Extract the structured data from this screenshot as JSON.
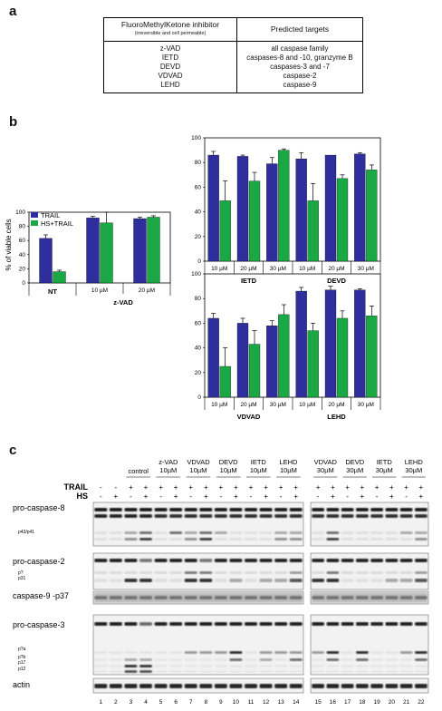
{
  "panel_a": {
    "letter": "a",
    "header_left_line1": "FluoroMethylKetone inhibitor",
    "header_left_line2": "(irreversible and cell permeable)",
    "header_right": "Predicted targets",
    "rows": [
      {
        "inhibitor": "z-VAD",
        "target": "all caspase family"
      },
      {
        "inhibitor": "IETD",
        "target": "caspases-8 and -10, granzyme B"
      },
      {
        "inhibitor": "DEVD",
        "target": "caspases-3 and -7"
      },
      {
        "inhibitor": "VDVAD",
        "target": "caspase-2"
      },
      {
        "inhibitor": "LEHD",
        "target": "caspase-9"
      }
    ]
  },
  "panel_b": {
    "letter": "b",
    "ylabel": "% of viable cells",
    "legend": [
      "TRAIL",
      "HS+TRAIL"
    ],
    "colors": {
      "trail": "#2e2f9c",
      "hs": "#19a844"
    }
  },
  "panel_c": {
    "letter": "c",
    "trail_label": "TRAIL",
    "hs_label": "HS",
    "group_labels_left": [
      "control",
      "z-VAD\n10µM",
      "VDVAD\n10µM",
      "DEVD\n10µM",
      "IETD\n10µM",
      "LEHD\n10µM"
    ],
    "group_labels_right": [
      "VDVAD\n30µM",
      "DEVD\n30µM",
      "IETD\n30µM",
      "LEHD\n30µM"
    ],
    "trail_signs_left": [
      "-",
      "-",
      "+",
      "+",
      "+",
      "+",
      "+",
      "+",
      "+",
      "+",
      "+",
      "+",
      "+",
      "+"
    ],
    "hs_signs_left": [
      "-",
      "+",
      "-",
      "+",
      "-",
      "+",
      "-",
      "+",
      "-",
      "+",
      "-",
      "+",
      "-",
      "+"
    ],
    "trail_signs_right": [
      "+",
      "+",
      "+",
      "+",
      "+",
      "+",
      "+",
      "+"
    ],
    "hs_signs_right": [
      "-",
      "+",
      "-",
      "+",
      "-",
      "+",
      "-",
      "+"
    ],
    "blots": [
      "pro-caspase-8",
      "pro-caspase-2",
      "caspase-9 -p37",
      "pro-caspase-3",
      "actin"
    ],
    "fragment_labels": {
      "c8": "p43/p41",
      "c2a": "p?",
      "c2b": "p31",
      "c3a": "p?a",
      "c3b": "p?b",
      "c3c": "p17",
      "c3d": "p12"
    },
    "lanes": [
      "1",
      "2",
      "3",
      "4",
      "5",
      "6",
      "7",
      "8",
      "9",
      "10",
      "11",
      "12",
      "13",
      "14",
      "15",
      "16",
      "17",
      "18",
      "19",
      "20",
      "21",
      "22"
    ]
  },
  "chart_data": [
    {
      "type": "bar",
      "ylabel": "% of viable cells",
      "ylim": [
        0,
        100
      ],
      "yticks": [
        0,
        20,
        40,
        60,
        80,
        100
      ],
      "categories": [
        "NT",
        "10 µM",
        "20 µM"
      ],
      "group_labels": [
        "NT",
        "z-VAD"
      ],
      "series": [
        {
          "name": "TRAIL",
          "values": [
            63,
            92,
            91
          ],
          "errors": [
            5,
            2,
            2
          ]
        },
        {
          "name": "HS+TRAIL",
          "values": [
            16,
            85,
            93
          ],
          "errors": [
            2,
            15,
            2
          ]
        }
      ]
    },
    {
      "type": "bar",
      "ylim": [
        0,
        100
      ],
      "yticks": [
        0,
        20,
        40,
        60,
        80,
        100
      ],
      "categories": [
        "10 µM",
        "20 µM",
        "30 µM",
        "10 µM",
        "20 µM",
        "30 µM"
      ],
      "group_labels": [
        "IETD",
        "DEVD"
      ],
      "series": [
        {
          "name": "TRAIL",
          "values": [
            86,
            85,
            79,
            83,
            86,
            87
          ],
          "errors": [
            3,
            1,
            5,
            5,
            0,
            1
          ]
        },
        {
          "name": "HS+TRAIL",
          "values": [
            49,
            65,
            90,
            49,
            67,
            74
          ],
          "errors": [
            16,
            7,
            1,
            14,
            3,
            4
          ]
        }
      ]
    },
    {
      "type": "bar",
      "ylim": [
        0,
        100
      ],
      "yticks": [
        0,
        20,
        40,
        60,
        80,
        100
      ],
      "categories": [
        "10 µM",
        "20 µM",
        "30 µM",
        "10 µM",
        "20 µM",
        "30 µM"
      ],
      "group_labels": [
        "VDVAD",
        "LEHD"
      ],
      "series": [
        {
          "name": "TRAIL",
          "values": [
            64,
            60,
            58,
            86,
            87,
            87
          ],
          "errors": [
            4,
            4,
            4,
            3,
            3,
            1
          ]
        },
        {
          "name": "HS+TRAIL",
          "values": [
            25,
            43,
            67,
            54,
            64,
            66
          ],
          "errors": [
            15,
            11,
            8,
            6,
            6,
            8
          ]
        }
      ]
    }
  ]
}
